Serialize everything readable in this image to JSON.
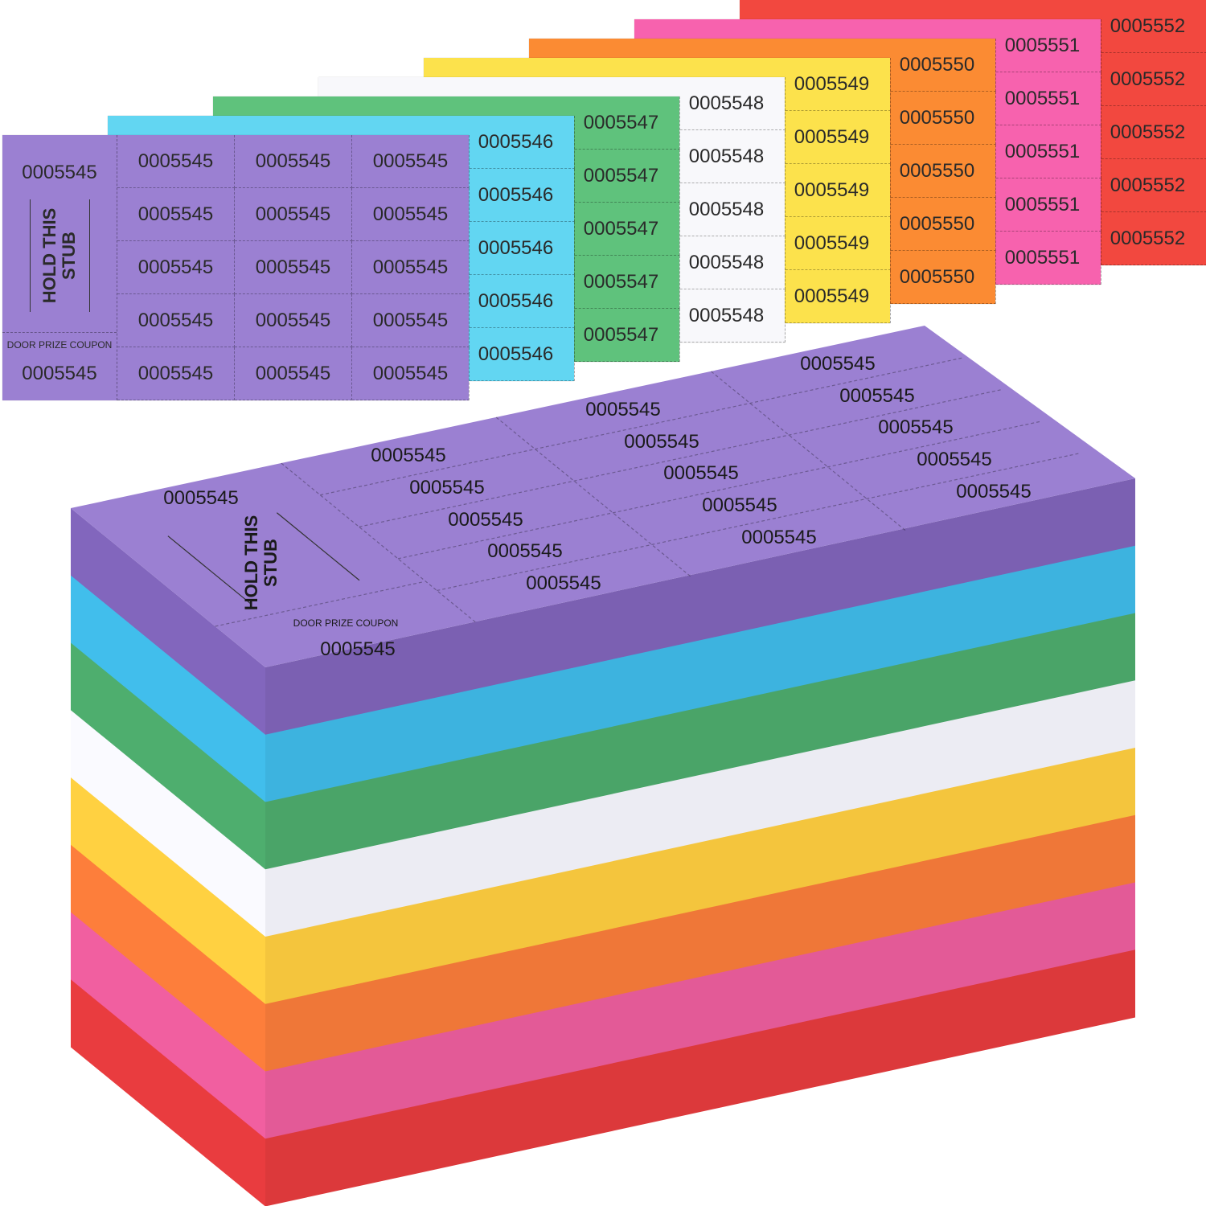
{
  "tickets": {
    "stub_label": "HOLD THIS STUB",
    "coupon_label": "DOOR PRIZE COUPON",
    "sheets": [
      {
        "color_name": "purple",
        "color": "#9b80d2",
        "edge_color": "#7b60b2",
        "number": "0005545"
      },
      {
        "color_name": "cyan",
        "color": "#62d6f2",
        "edge_color": "#3db3df",
        "number": "0005546"
      },
      {
        "color_name": "green",
        "color": "#5fc27c",
        "edge_color": "#4aa468",
        "number": "0005547"
      },
      {
        "color_name": "white",
        "color": "#f8f8fb",
        "edge_color": "#ececf3",
        "number": "0005548"
      },
      {
        "color_name": "yellow",
        "color": "#fce24c",
        "edge_color": "#f4c53d",
        "number": "0005549"
      },
      {
        "color_name": "orange",
        "color": "#fb8b33",
        "edge_color": "#ef7738",
        "number": "0005550"
      },
      {
        "color_name": "pink",
        "color": "#f762ae",
        "edge_color": "#e35a97",
        "number": "0005551"
      },
      {
        "color_name": "red",
        "color": "#f2483f",
        "edge_color": "#dc393b",
        "number": "0005552"
      }
    ]
  }
}
